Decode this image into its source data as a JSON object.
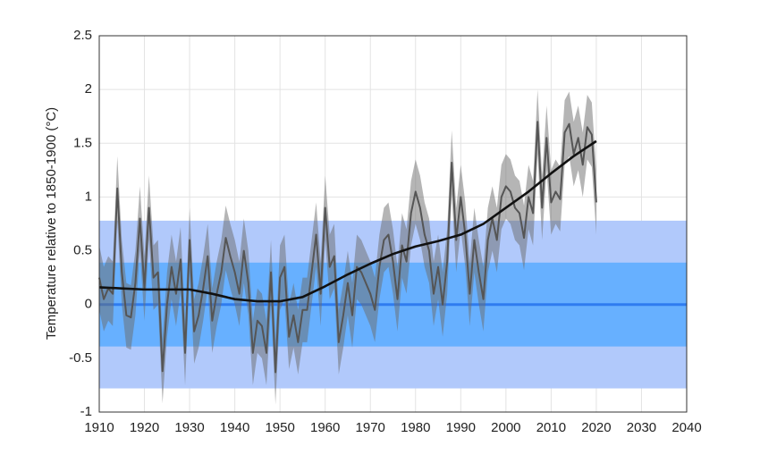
{
  "chart_data": {
    "type": "line",
    "ylabel": "Temperature relative to 1850-1900 (°C)",
    "xlim": [
      1910,
      2040
    ],
    "ylim": [
      -1,
      2.5
    ],
    "xticks": [
      1910,
      1920,
      1930,
      1940,
      1950,
      1960,
      1970,
      1980,
      1990,
      2000,
      2010,
      2020,
      2030,
      2040
    ],
    "yticks": [
      -1,
      -0.5,
      0,
      0.5,
      1,
      1.5,
      2,
      2.5
    ],
    "grid": true,
    "bands": [
      {
        "lower": -0.78,
        "upper": 0.78,
        "color": "#b1c9fb"
      },
      {
        "lower": -0.39,
        "upper": 0.39,
        "color": "#67b0ff"
      }
    ],
    "reference_line": {
      "value": 0,
      "color": "#2f7cf0"
    },
    "series": [
      {
        "color": "#555555",
        "band_color": "#6b6b6b",
        "error": 0.3,
        "x": [
          1910,
          1911,
          1912,
          1913,
          1914,
          1915,
          1916,
          1917,
          1918,
          1919,
          1920,
          1921,
          1922,
          1923,
          1924,
          1925,
          1926,
          1927,
          1928,
          1929,
          1930,
          1931,
          1932,
          1933,
          1934,
          1935,
          1936,
          1937,
          1938,
          1939,
          1940,
          1941,
          1942,
          1943,
          1944,
          1945,
          1946,
          1947,
          1948,
          1949,
          1950,
          1951,
          1952,
          1953,
          1954,
          1955,
          1956,
          1957,
          1958,
          1959,
          1960,
          1961,
          1962,
          1963,
          1964,
          1965,
          1966,
          1967,
          1968,
          1969,
          1970,
          1971,
          1972,
          1973,
          1974,
          1975,
          1976,
          1977,
          1978,
          1979,
          1980,
          1981,
          1982,
          1983,
          1984,
          1985,
          1986,
          1987,
          1988,
          1989,
          1990,
          1991,
          1992,
          1993,
          1994,
          1995,
          1996,
          1997,
          1998,
          1999,
          2000,
          2001,
          2002,
          2003,
          2004,
          2005,
          2006,
          2007,
          2008,
          2009,
          2010,
          2011,
          2012,
          2013,
          2014,
          2015,
          2016,
          2017,
          2018,
          2019,
          2020
        ],
        "values": [
          0.25,
          0.05,
          0.15,
          0.1,
          1.08,
          0.3,
          -0.1,
          -0.12,
          0.2,
          0.8,
          0.15,
          0.9,
          0.25,
          0.3,
          -0.62,
          0.0,
          0.35,
          0.1,
          0.42,
          -0.45,
          0.6,
          -0.25,
          -0.1,
          0.15,
          0.45,
          -0.15,
          0.1,
          0.3,
          0.62,
          0.45,
          0.3,
          0.1,
          0.5,
          0.2,
          -0.45,
          -0.15,
          -0.2,
          -0.45,
          0.3,
          -0.63,
          0.25,
          0.35,
          -0.3,
          -0.1,
          -0.35,
          -0.05,
          -0.05,
          0.3,
          0.65,
          0.1,
          0.9,
          0.35,
          0.45,
          -0.35,
          -0.1,
          0.2,
          -0.1,
          0.35,
          0.3,
          0.2,
          0.1,
          -0.05,
          0.35,
          0.6,
          0.65,
          0.4,
          0.05,
          0.55,
          0.4,
          0.85,
          1.05,
          0.9,
          0.65,
          0.5,
          0.1,
          0.35,
          0.0,
          0.4,
          1.32,
          0.6,
          1.0,
          0.65,
          0.1,
          0.6,
          0.3,
          0.05,
          0.6,
          0.8,
          0.6,
          1.0,
          1.1,
          1.05,
          0.9,
          0.85,
          0.62,
          1.0,
          0.85,
          1.7,
          0.9,
          1.55,
          0.95,
          1.05,
          0.98,
          1.6,
          1.68,
          1.4,
          1.55,
          1.3,
          1.65,
          1.58,
          0.95
        ]
      },
      {
        "color": "#111111",
        "x": [
          1910,
          1915,
          1920,
          1925,
          1930,
          1935,
          1940,
          1945,
          1950,
          1955,
          1960,
          1965,
          1970,
          1975,
          1980,
          1985,
          1990,
          1995,
          2000,
          2005,
          2010,
          2015,
          2020
        ],
        "values": [
          0.16,
          0.15,
          0.14,
          0.14,
          0.14,
          0.1,
          0.05,
          0.03,
          0.03,
          0.07,
          0.17,
          0.28,
          0.38,
          0.47,
          0.54,
          0.59,
          0.65,
          0.75,
          0.9,
          1.05,
          1.22,
          1.38,
          1.52
        ]
      }
    ]
  }
}
